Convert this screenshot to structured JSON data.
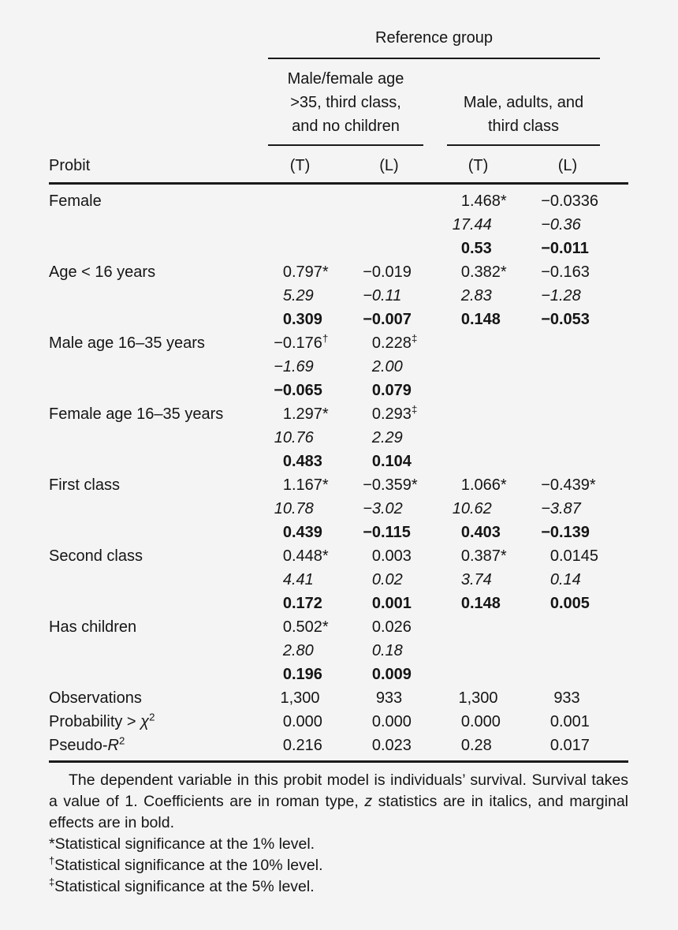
{
  "colors": {
    "background": "#f4f4f4",
    "text": "#151515",
    "rule": "#1a1a1a"
  },
  "table": {
    "header": {
      "spanner": "Reference group",
      "groups": [
        {
          "label_lines": [
            "Male/female age",
            ">35, third class,",
            "and no children"
          ]
        },
        {
          "label_lines": [
            "Male, adults, and",
            "third class"
          ]
        }
      ],
      "stub": "Probit",
      "col_labels": [
        "(T)",
        "(L)",
        "(T)",
        "(L)"
      ]
    },
    "rows": [
      {
        "style": "coef",
        "label": "Female",
        "cells": [
          "",
          "",
          "1.468*",
          "−0.0336"
        ]
      },
      {
        "style": "zstat",
        "label": "",
        "cells": [
          "",
          "",
          "17.44",
          "−0.36"
        ]
      },
      {
        "style": "me",
        "label": "",
        "cells": [
          "",
          "",
          "0.53",
          "−0.011"
        ]
      },
      {
        "style": "coef",
        "label": "Age < 16 years",
        "cells": [
          "0.797*",
          "−0.019",
          "0.382*",
          "−0.163"
        ]
      },
      {
        "style": "zstat",
        "label": "",
        "cells": [
          "5.29",
          "−0.11",
          "2.83",
          "−1.28"
        ]
      },
      {
        "style": "me",
        "label": "",
        "cells": [
          "0.309",
          "−0.007",
          "0.148",
          "−0.053"
        ]
      },
      {
        "style": "coef",
        "label": "Male age 16–35 years",
        "cells": [
          "−0.176†",
          "0.228‡",
          "",
          ""
        ]
      },
      {
        "style": "zstat",
        "label": "",
        "cells": [
          "−1.69",
          "2.00",
          "",
          ""
        ]
      },
      {
        "style": "me",
        "label": "",
        "cells": [
          "−0.065",
          "0.079",
          "",
          ""
        ]
      },
      {
        "style": "coef",
        "label": "Female age 16–35 years",
        "cells": [
          "1.297*",
          "0.293‡",
          "",
          ""
        ]
      },
      {
        "style": "zstat",
        "label": "",
        "cells": [
          "10.76",
          "2.29",
          "",
          ""
        ]
      },
      {
        "style": "me",
        "label": "",
        "cells": [
          "0.483",
          "0.104",
          "",
          ""
        ]
      },
      {
        "style": "coef",
        "label": "First class",
        "cells": [
          "1.167*",
          "−0.359*",
          "1.066*",
          "−0.439*"
        ]
      },
      {
        "style": "zstat",
        "label": "",
        "cells": [
          "10.78",
          "−3.02",
          "10.62",
          "−3.87"
        ]
      },
      {
        "style": "me",
        "label": "",
        "cells": [
          "0.439",
          "−0.115",
          "0.403",
          "−0.139"
        ]
      },
      {
        "style": "coef",
        "label": "Second class",
        "cells": [
          "0.448*",
          "0.003",
          "0.387*",
          "0.0145"
        ]
      },
      {
        "style": "zstat",
        "label": "",
        "cells": [
          "4.41",
          "0.02",
          "3.74",
          "0.14"
        ]
      },
      {
        "style": "me",
        "label": "",
        "cells": [
          "0.172",
          "0.001",
          "0.148",
          "0.005"
        ]
      },
      {
        "style": "coef",
        "label": "Has children",
        "cells": [
          "0.502*",
          "0.026",
          "",
          ""
        ]
      },
      {
        "style": "zstat",
        "label": "",
        "cells": [
          "2.80",
          "0.18",
          "",
          ""
        ]
      },
      {
        "style": "me",
        "label": "",
        "cells": [
          "0.196",
          "0.009",
          "",
          ""
        ]
      },
      {
        "style": "stat",
        "label": "Observations",
        "cells": [
          "1,300",
          "933",
          "1,300",
          "933"
        ]
      },
      {
        "style": "stat",
        "label": [
          {
            "t": "Probability > "
          },
          {
            "t": "χ",
            "i": true
          },
          {
            "t": "2",
            "sup": true
          }
        ],
        "cells": [
          "0.000",
          "0.000",
          "0.000",
          "0.001"
        ]
      },
      {
        "style": "stat",
        "label": [
          {
            "t": "Pseudo-"
          },
          {
            "t": "R",
            "i": true
          },
          {
            "t": "2",
            "sup": true
          }
        ],
        "cells": [
          "0.216",
          "0.023",
          "0.28",
          "0.017"
        ]
      }
    ]
  },
  "notes": {
    "paragraph": [
      {
        "t": "The dependent variable in this probit model is individuals’ survival. Sur­vival takes a value of 1. Coefficients are in roman type, "
      },
      {
        "t": "z",
        "i": true
      },
      {
        "t": " statistics are in italics, and marginal effects are in bold."
      }
    ],
    "footnotes": [
      [
        {
          "t": "*"
        },
        {
          "t": "Statistical significance at the 1% level."
        }
      ],
      [
        {
          "t": "†",
          "sup": true
        },
        {
          "t": "Statistical significance at the 10% level."
        }
      ],
      [
        {
          "t": "‡",
          "sup": true
        },
        {
          "t": "Statistical significance at the 5% level."
        }
      ]
    ]
  }
}
